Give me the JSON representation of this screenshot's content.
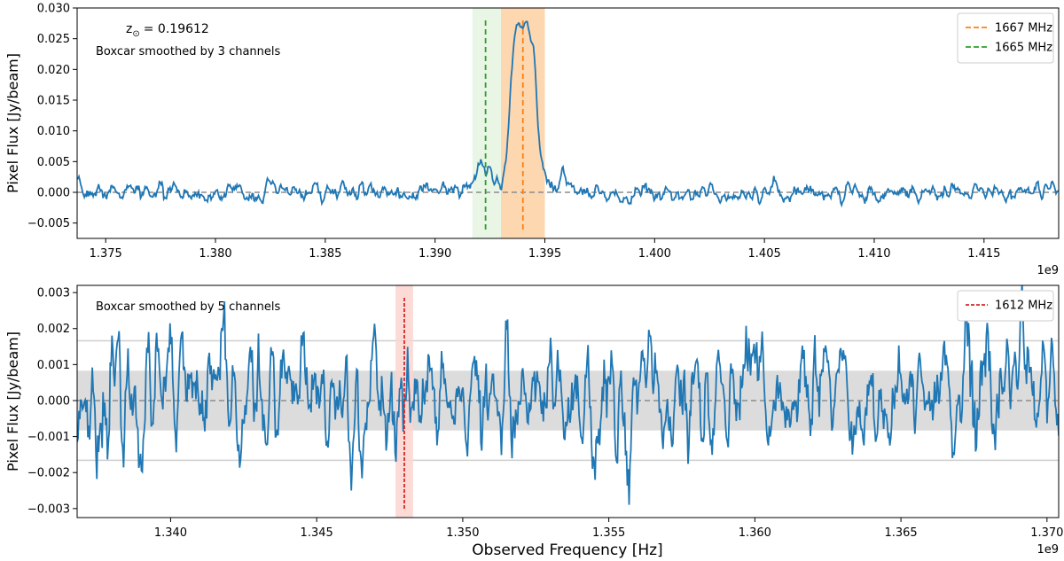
{
  "figure": {
    "shared_xlabel": "Observed Frequency [Hz]"
  },
  "chart_data": [
    {
      "type": "line",
      "ylabel": "Pixel Flux [Jy/beam]",
      "xlim": [
        1.3737,
        1.4184
      ],
      "ylim": [
        -0.0075,
        0.03
      ],
      "x_offset_text": "1e9",
      "xticks": [
        1.375,
        1.38,
        1.385,
        1.39,
        1.395,
        1.4,
        1.405,
        1.41,
        1.415
      ],
      "xtick_labels": [
        "1.375",
        "1.380",
        "1.385",
        "1.390",
        "1.395",
        "1.400",
        "1.405",
        "1.410",
        "1.415"
      ],
      "yticks": [
        -0.005,
        0.0,
        0.005,
        0.01,
        0.015,
        0.02,
        0.025,
        0.03
      ],
      "ytick_labels": [
        "−0.005",
        "0.000",
        "0.005",
        "0.010",
        "0.015",
        "0.020",
        "0.025",
        "0.030"
      ],
      "annotations": {
        "redshift_label": "z",
        "redshift_value": "=  0.19612",
        "smoothing": "Boxcar smoothed by 3 channels"
      },
      "legend": [
        {
          "label": "1667 MHz",
          "color": "#ff7f0e"
        },
        {
          "label": "1665 MHz",
          "color": "#2ca02c"
        }
      ],
      "vlines": [
        {
          "x": 1.394,
          "color": "#ff7f0e"
        },
        {
          "x": 1.3923,
          "color": "#2ca02c"
        }
      ],
      "shaded_x": [
        {
          "from": 1.393,
          "to": 1.395,
          "color": "#fdd0a2"
        },
        {
          "from": 1.3917,
          "to": 1.393,
          "color": "#e5f5e0"
        }
      ],
      "series_color": "#1f77b4",
      "noise_sigma": 0.0009,
      "features": [
        {
          "center": 1.3922,
          "width": 0.0003,
          "amp": 0.0055
        },
        {
          "center": 1.3935,
          "width": 0.0002,
          "amp": 0.0095
        },
        {
          "center": 1.39385,
          "width": 0.00028,
          "amp": 0.0215
        },
        {
          "center": 1.3944,
          "width": 0.00028,
          "amp": 0.0215
        },
        {
          "center": 1.3959,
          "width": 0.0002,
          "amp": 0.0035
        }
      ],
      "seed": 7
    },
    {
      "type": "line",
      "ylabel": "Pixel Flux [Jy/beam]",
      "xlabel": "Observed Frequency [Hz]",
      "xlim": [
        1.3368,
        1.3704
      ],
      "ylim": [
        -0.00325,
        0.0032
      ],
      "x_offset_text": "1e9",
      "xticks": [
        1.34,
        1.345,
        1.35,
        1.355,
        1.36,
        1.365,
        1.37
      ],
      "xtick_labels": [
        "1.340",
        "1.345",
        "1.350",
        "1.355",
        "1.360",
        "1.365",
        "1.370"
      ],
      "yticks": [
        -0.003,
        -0.002,
        -0.001,
        0.0,
        0.001,
        0.002,
        0.003
      ],
      "ytick_labels": [
        "−0.003",
        "−0.002",
        "−0.001",
        "0.000",
        "0.001",
        "0.002",
        "0.003"
      ],
      "annotations": {
        "smoothing": "Boxcar smoothed by 5 channels"
      },
      "legend": [
        {
          "label": "1612 MHz",
          "color": "#d62728"
        }
      ],
      "vlines": [
        {
          "x": 1.348,
          "color": "#d62728"
        }
      ],
      "shaded_x": [
        {
          "from": 1.3477,
          "to": 1.3483,
          "color": "#fcd5d0"
        }
      ],
      "sigma_band": {
        "from": -0.00083,
        "to": 0.00083,
        "color": "#dcdcdc"
      },
      "sigma_lines": [
        0.00166,
        -0.00166
      ],
      "series_color": "#1f77b4",
      "noise_sigma": 0.0009,
      "features": [],
      "seed": 23
    }
  ]
}
